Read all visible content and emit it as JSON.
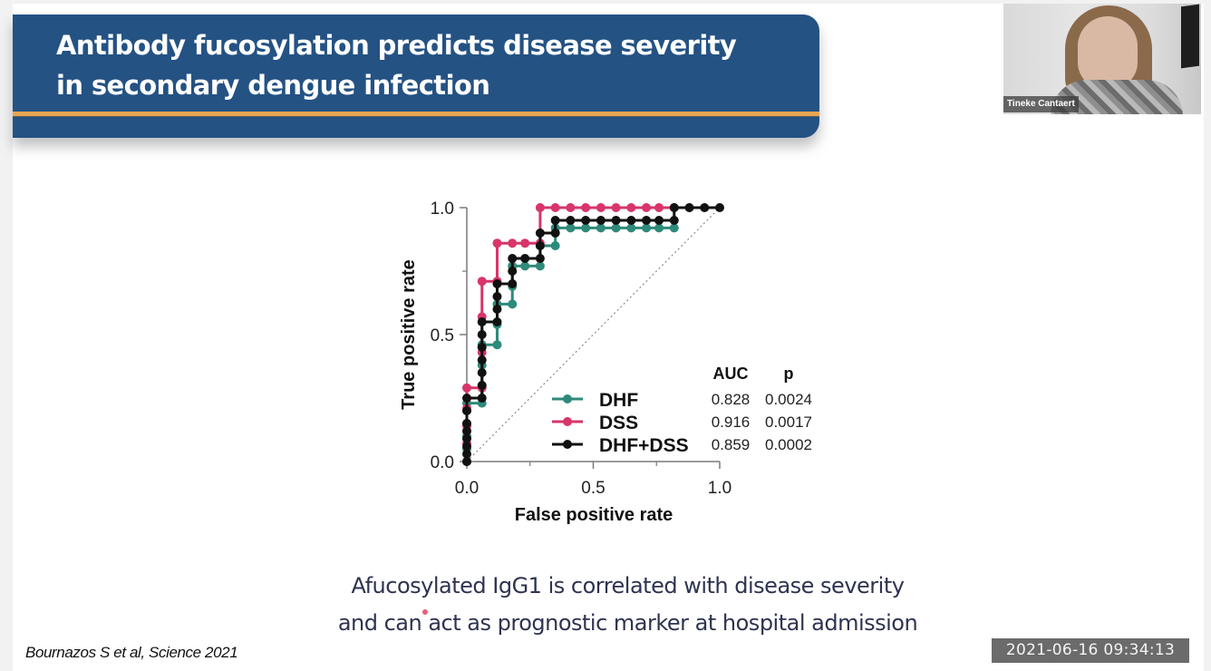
{
  "slide": {
    "title_line1": "Antibody fucosylation predicts disease severity",
    "title_line2": "in secondary dengue infection",
    "conclusion_line1": "Afucosylated IgG1 is correlated with disease severity",
    "conclusion_line2": "and can act as prognostic marker at hospital admission",
    "citation": "Bournazos S et al, Science 2021",
    "colors": {
      "banner": "#245283",
      "banner_rule": "#e8a552",
      "text": "#2e3350"
    }
  },
  "webcam": {
    "participant_name": "Tineke Cantaert"
  },
  "recording": {
    "timestamp": "2021-06-16 09:34:13"
  },
  "chart_data": {
    "type": "line",
    "subtype": "ROC step curve",
    "title": "",
    "xlabel": "False positive rate",
    "ylabel": "True positive rate",
    "xlim": [
      0,
      1
    ],
    "ylim": [
      0,
      1
    ],
    "xticks": [
      "0.0",
      "0.5",
      "1.0"
    ],
    "yticks": [
      "0.0",
      "0.5",
      "1.0"
    ],
    "minor_ticks": [
      0.25,
      0.75
    ],
    "grid": false,
    "reference_line": {
      "style": "dotted",
      "from": [
        0,
        0
      ],
      "to": [
        1,
        1
      ]
    },
    "legend": {
      "placement": "bottom-right",
      "headers": {
        "auc": "AUC",
        "p": "p"
      }
    },
    "series": [
      {
        "name": "DHF",
        "color": "#2e8a7a",
        "auc": "0.828",
        "p": "0.0024",
        "points": [
          [
            0,
            0
          ],
          [
            0,
            0.05
          ],
          [
            0,
            0.1
          ],
          [
            0,
            0.15
          ],
          [
            0,
            0.2
          ],
          [
            0,
            0.23
          ],
          [
            0.06,
            0.23
          ],
          [
            0.06,
            0.3
          ],
          [
            0.06,
            0.38
          ],
          [
            0.06,
            0.46
          ],
          [
            0.12,
            0.46
          ],
          [
            0.12,
            0.54
          ],
          [
            0.12,
            0.62
          ],
          [
            0.18,
            0.62
          ],
          [
            0.18,
            0.69
          ],
          [
            0.18,
            0.77
          ],
          [
            0.23,
            0.77
          ],
          [
            0.29,
            0.77
          ],
          [
            0.29,
            0.85
          ],
          [
            0.35,
            0.85
          ],
          [
            0.35,
            0.92
          ],
          [
            0.41,
            0.92
          ],
          [
            0.47,
            0.92
          ],
          [
            0.53,
            0.92
          ],
          [
            0.59,
            0.92
          ],
          [
            0.65,
            0.92
          ],
          [
            0.71,
            0.92
          ],
          [
            0.76,
            0.92
          ],
          [
            0.82,
            0.92
          ]
        ]
      },
      {
        "name": "DSS",
        "color": "#d8356a",
        "auc": "0.916",
        "p": "0.0017",
        "points": [
          [
            0,
            0
          ],
          [
            0,
            0.07
          ],
          [
            0,
            0.14
          ],
          [
            0,
            0.21
          ],
          [
            0,
            0.29
          ],
          [
            0.06,
            0.29
          ],
          [
            0.06,
            0.43
          ],
          [
            0.06,
            0.57
          ],
          [
            0.06,
            0.71
          ],
          [
            0.12,
            0.71
          ],
          [
            0.12,
            0.86
          ],
          [
            0.18,
            0.86
          ],
          [
            0.23,
            0.86
          ],
          [
            0.29,
            0.86
          ],
          [
            0.29,
            1.0
          ],
          [
            0.35,
            1.0
          ],
          [
            0.41,
            1.0
          ],
          [
            0.47,
            1.0
          ],
          [
            0.53,
            1.0
          ],
          [
            0.59,
            1.0
          ],
          [
            0.65,
            1.0
          ],
          [
            0.71,
            1.0
          ],
          [
            0.76,
            1.0
          ],
          [
            0.82,
            1.0
          ]
        ]
      },
      {
        "name": "DHF+DSS",
        "color": "#111111",
        "auc": "0.859",
        "p": "0.0002",
        "points": [
          [
            0,
            0
          ],
          [
            0,
            0.03
          ],
          [
            0,
            0.06
          ],
          [
            0,
            0.09
          ],
          [
            0,
            0.12
          ],
          [
            0,
            0.15
          ],
          [
            0,
            0.2
          ],
          [
            0,
            0.25
          ],
          [
            0.06,
            0.25
          ],
          [
            0.06,
            0.3
          ],
          [
            0.06,
            0.35
          ],
          [
            0.06,
            0.4
          ],
          [
            0.06,
            0.45
          ],
          [
            0.06,
            0.5
          ],
          [
            0.06,
            0.55
          ],
          [
            0.12,
            0.55
          ],
          [
            0.12,
            0.6
          ],
          [
            0.12,
            0.65
          ],
          [
            0.12,
            0.7
          ],
          [
            0.18,
            0.7
          ],
          [
            0.18,
            0.75
          ],
          [
            0.18,
            0.8
          ],
          [
            0.23,
            0.8
          ],
          [
            0.29,
            0.8
          ],
          [
            0.29,
            0.85
          ],
          [
            0.29,
            0.9
          ],
          [
            0.35,
            0.9
          ],
          [
            0.35,
            0.95
          ],
          [
            0.41,
            0.95
          ],
          [
            0.47,
            0.95
          ],
          [
            0.53,
            0.95
          ],
          [
            0.59,
            0.95
          ],
          [
            0.65,
            0.95
          ],
          [
            0.71,
            0.95
          ],
          [
            0.76,
            0.95
          ],
          [
            0.82,
            0.95
          ],
          [
            0.82,
            1.0
          ],
          [
            0.88,
            1.0
          ],
          [
            0.94,
            1.0
          ],
          [
            1.0,
            1.0
          ]
        ]
      }
    ]
  }
}
